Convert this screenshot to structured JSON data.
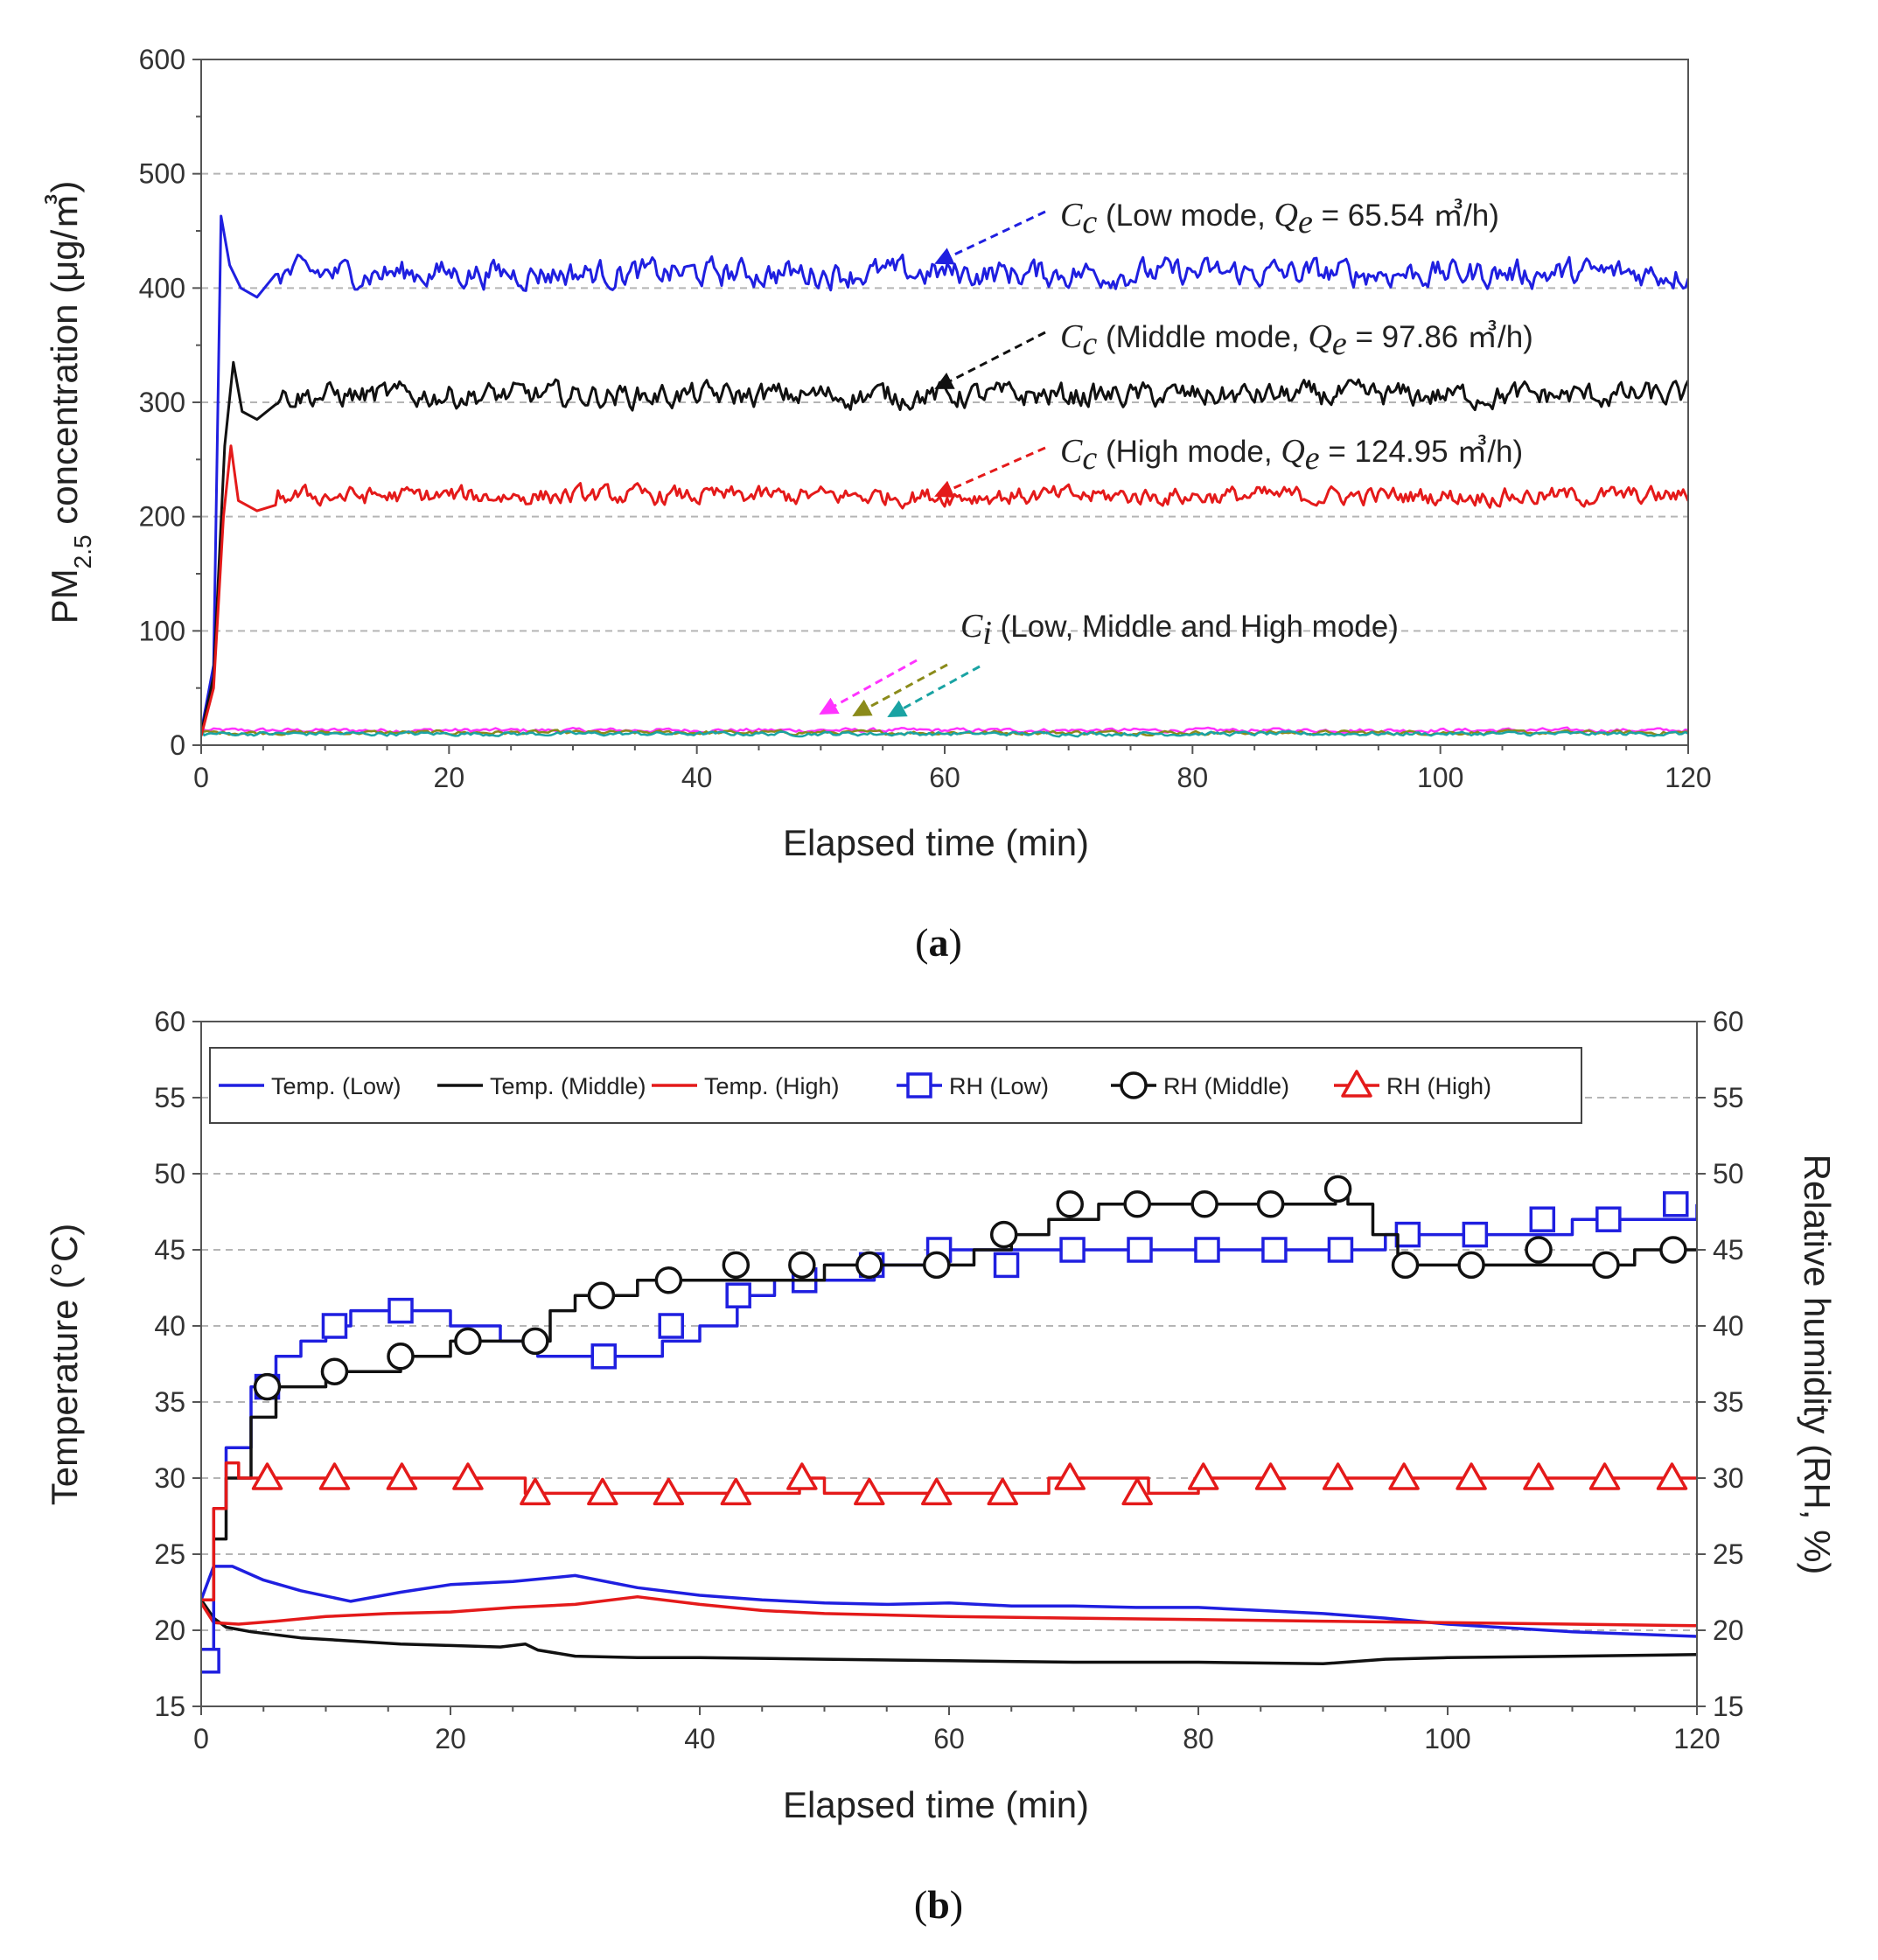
{
  "chart_data": [
    {
      "id": "a",
      "type": "line",
      "caption": {
        "open": "(",
        "letter": "a",
        "close": ")"
      },
      "xlabel": "Elapsed time (min)",
      "ylabel": {
        "main": "PM",
        "sub": "2.5",
        "rest": " concentration (μg/㎥)"
      },
      "xlim": [
        0,
        120
      ],
      "ylim": [
        0,
        600
      ],
      "xticks": [
        0,
        20,
        40,
        60,
        80,
        100,
        120
      ],
      "yticks": [
        0,
        100,
        200,
        300,
        400,
        500,
        600
      ],
      "grid": "horizontal dashed",
      "series": [
        {
          "name": "Cc Low mode",
          "color": "#1f1fe0",
          "baseline": 413,
          "noise": 9,
          "spike": [
            [
              0,
              12
            ],
            [
              1,
              70
            ],
            [
              1.6,
              463
            ],
            [
              2.3,
              420
            ],
            [
              3.2,
              400
            ],
            [
              4.5,
              392
            ],
            [
              6,
              412
            ]
          ]
        },
        {
          "name": "Cc Middle mode",
          "color": "#111111",
          "baseline": 306,
          "noise": 8,
          "spike": [
            [
              0,
              10
            ],
            [
              1,
              60
            ],
            [
              1.9,
              262
            ],
            [
              2.6,
              335
            ],
            [
              3.3,
              292
            ],
            [
              4.5,
              285
            ],
            [
              6,
              298
            ]
          ]
        },
        {
          "name": "Cc High mode",
          "color": "#e41a1a",
          "baseline": 218,
          "noise": 6,
          "spike": [
            [
              0,
              8
            ],
            [
              1,
              50
            ],
            [
              1.8,
              200
            ],
            [
              2.4,
              262
            ],
            [
              3,
              214
            ],
            [
              4.5,
              205
            ],
            [
              6,
              210
            ]
          ]
        },
        {
          "name": "Ci Low",
          "color": "#ff33ff",
          "baseline": 13,
          "noise": 1.5
        },
        {
          "name": "Ci Middle",
          "color": "#8b8b1a",
          "baseline": 11,
          "noise": 1.5
        },
        {
          "name": "Ci High",
          "color": "#1aa3a3",
          "baseline": 10,
          "noise": 1.5
        }
      ],
      "annotations": [
        {
          "symbol": "C",
          "sub": "c",
          "text1": " (Low mode, ",
          "symbol2": "Q",
          "sub2": "e",
          "text2": " = 65.54 ㎥/h)"
        },
        {
          "symbol": "C",
          "sub": "c",
          "text1": " (Middle mode, ",
          "symbol2": "Q",
          "sub2": "e",
          "text2": " = 97.86 ㎥/h)"
        },
        {
          "symbol": "C",
          "sub": "c",
          "text1": " (High mode, ",
          "symbol2": "Q",
          "sub2": "e",
          "text2": " = 124.95 ㎥/h)"
        },
        {
          "symbol": "C",
          "sub": "i",
          "text1": " (Low, Middle and High mode)"
        }
      ]
    },
    {
      "id": "b",
      "type": "line",
      "caption": {
        "open": "(",
        "letter": "b",
        "close": ")"
      },
      "xlabel": "Elapsed time (min)",
      "ylabel": "Temperature (°C)",
      "ylabel_right": "Relative humidity (RH, %)",
      "xlim": [
        0,
        120
      ],
      "ylim": [
        15,
        60
      ],
      "xticks": [
        0,
        20,
        40,
        60,
        80,
        100,
        120
      ],
      "yticks": [
        15,
        20,
        25,
        30,
        35,
        40,
        45,
        50,
        55,
        60
      ],
      "grid": "horizontal dashed",
      "legend": "top, inside",
      "series": [
        {
          "name": "Temp. (Low)",
          "color": "#1f1fe0",
          "marker": "none",
          "x": [
            0,
            1,
            2.5,
            5,
            8,
            12,
            16,
            20,
            25,
            30,
            35,
            40,
            45,
            50,
            55,
            60,
            65,
            70,
            75,
            80,
            85,
            90,
            95,
            100,
            110,
            120
          ],
          "y": [
            22,
            24.2,
            24.2,
            23.3,
            22.6,
            21.9,
            22.5,
            23.0,
            23.2,
            23.6,
            22.8,
            22.3,
            22.0,
            21.8,
            21.7,
            21.8,
            21.6,
            21.6,
            21.5,
            21.5,
            21.3,
            21.1,
            20.8,
            20.4,
            19.9,
            19.6
          ]
        },
        {
          "name": "Temp. (Middle)",
          "color": "#111111",
          "marker": "none",
          "x": [
            0,
            1,
            2,
            4,
            8,
            12,
            16,
            20,
            24,
            26,
            27,
            30,
            35,
            40,
            50,
            60,
            70,
            80,
            90,
            95,
            100,
            110,
            120
          ],
          "y": [
            22,
            20.8,
            20.2,
            19.9,
            19.5,
            19.3,
            19.1,
            19.0,
            18.9,
            19.1,
            18.7,
            18.3,
            18.2,
            18.2,
            18.1,
            18.0,
            17.9,
            17.9,
            17.8,
            18.1,
            18.2,
            18.3,
            18.4
          ]
        },
        {
          "name": "Temp. (High)",
          "color": "#e41a1a",
          "marker": "none",
          "x": [
            0,
            1,
            3,
            6,
            10,
            15,
            20,
            25,
            30,
            35,
            40,
            45,
            50,
            60,
            70,
            80,
            90,
            100,
            110,
            120
          ],
          "y": [
            21.8,
            20.5,
            20.4,
            20.6,
            20.9,
            21.1,
            21.2,
            21.5,
            21.7,
            22.2,
            21.7,
            21.3,
            21.1,
            20.9,
            20.8,
            20.7,
            20.6,
            20.5,
            20.4,
            20.3
          ]
        },
        {
          "name": "RH (Low)",
          "color": "#1f1fe0",
          "marker": "square",
          "x": [
            0,
            1,
            2,
            4,
            6,
            8,
            10,
            12,
            15,
            17,
            20,
            24,
            27,
            30,
            34,
            37,
            40,
            43,
            46,
            50,
            54,
            58,
            60,
            64,
            68,
            72,
            76,
            80,
            85,
            90,
            95,
            100,
            105,
            110,
            115,
            120
          ],
          "y": [
            18,
            28,
            32,
            36,
            38,
            39,
            40,
            41,
            41,
            41,
            40,
            39,
            38,
            38,
            38,
            39,
            40,
            42,
            43,
            43,
            44,
            44,
            45,
            45,
            45,
            45,
            45,
            45,
            45,
            45,
            46,
            46,
            46,
            47,
            47,
            48
          ],
          "markers": [
            [
              0.5,
              18
            ],
            [
              5.3,
              36
            ],
            [
              10.7,
              40
            ],
            [
              16,
              41
            ],
            [
              32.3,
              38
            ],
            [
              37.7,
              40
            ],
            [
              43.1,
              42
            ],
            [
              48.4,
              43
            ],
            [
              53.8,
              44
            ],
            [
              59.2,
              45
            ],
            [
              64.6,
              44
            ],
            [
              69.9,
              45
            ],
            [
              75.3,
              45
            ],
            [
              80.7,
              45
            ],
            [
              86.1,
              45
            ],
            [
              91.4,
              45
            ],
            [
              96.8,
              46
            ],
            [
              102.2,
              46
            ],
            [
              107.6,
              47
            ],
            [
              112.9,
              47
            ],
            [
              118.3,
              48
            ]
          ]
        },
        {
          "name": "RH (Middle)",
          "color": "#111111",
          "marker": "circle",
          "x": [
            0,
            1,
            2,
            4,
            6,
            8,
            10,
            13,
            16,
            20,
            24,
            27,
            28,
            30,
            32,
            35,
            40,
            45,
            50,
            55,
            58,
            60,
            62,
            65,
            68,
            72,
            76,
            80,
            84,
            88,
            91,
            92,
            94,
            96,
            100,
            105,
            110,
            115,
            120
          ],
          "y": [
            22,
            26,
            30,
            34,
            36,
            36,
            37,
            37,
            38,
            39,
            39,
            39,
            41,
            42,
            42,
            43,
            43,
            43,
            44,
            44,
            44,
            44,
            45,
            46,
            47,
            48,
            48,
            48,
            48,
            48,
            49,
            48,
            46,
            44,
            44,
            44,
            44,
            45,
            45
          ],
          "markers": [
            [
              5.3,
              36
            ],
            [
              10.7,
              37
            ],
            [
              16,
              38
            ],
            [
              21.4,
              39
            ],
            [
              26.8,
              39
            ],
            [
              32.1,
              42
            ],
            [
              37.5,
              43
            ],
            [
              42.9,
              44
            ],
            [
              48.2,
              44
            ],
            [
              53.6,
              44
            ],
            [
              59,
              44
            ],
            [
              64.4,
              46
            ],
            [
              69.7,
              48
            ],
            [
              75.1,
              48
            ],
            [
              80.5,
              48
            ],
            [
              85.8,
              48
            ],
            [
              91.2,
              49
            ],
            [
              96.6,
              44
            ],
            [
              101.9,
              44
            ],
            [
              107.3,
              45
            ],
            [
              112.7,
              44
            ],
            [
              118.1,
              45
            ]
          ]
        },
        {
          "name": "RH (High)",
          "color": "#e41a1a",
          "marker": "triangle",
          "x": [
            0,
            1,
            2,
            3,
            5,
            10,
            20,
            25,
            26,
            30,
            35,
            40,
            45,
            48,
            50,
            55,
            60,
            65,
            68,
            72,
            76,
            80,
            85,
            90,
            100,
            110,
            120
          ],
          "y": [
            22,
            28,
            31,
            30,
            30,
            30,
            30,
            30,
            29,
            29,
            29,
            29,
            29,
            30,
            29,
            29,
            29,
            29,
            30,
            30,
            29,
            30,
            30,
            30,
            30,
            30,
            30
          ],
          "markers": [
            [
              5.3,
              30
            ],
            [
              10.7,
              30
            ],
            [
              16.1,
              30
            ],
            [
              21.4,
              30
            ],
            [
              26.8,
              29
            ],
            [
              32.2,
              29
            ],
            [
              37.5,
              29
            ],
            [
              42.9,
              29
            ],
            [
              48.2,
              30
            ],
            [
              53.6,
              29
            ],
            [
              59,
              29
            ],
            [
              64.3,
              29
            ],
            [
              69.7,
              30
            ],
            [
              75.1,
              29
            ],
            [
              80.4,
              30
            ],
            [
              85.8,
              30
            ],
            [
              91.2,
              30
            ],
            [
              96.5,
              30
            ],
            [
              101.9,
              30
            ],
            [
              107.3,
              30
            ],
            [
              112.6,
              30
            ],
            [
              118,
              30
            ]
          ]
        }
      ]
    }
  ]
}
